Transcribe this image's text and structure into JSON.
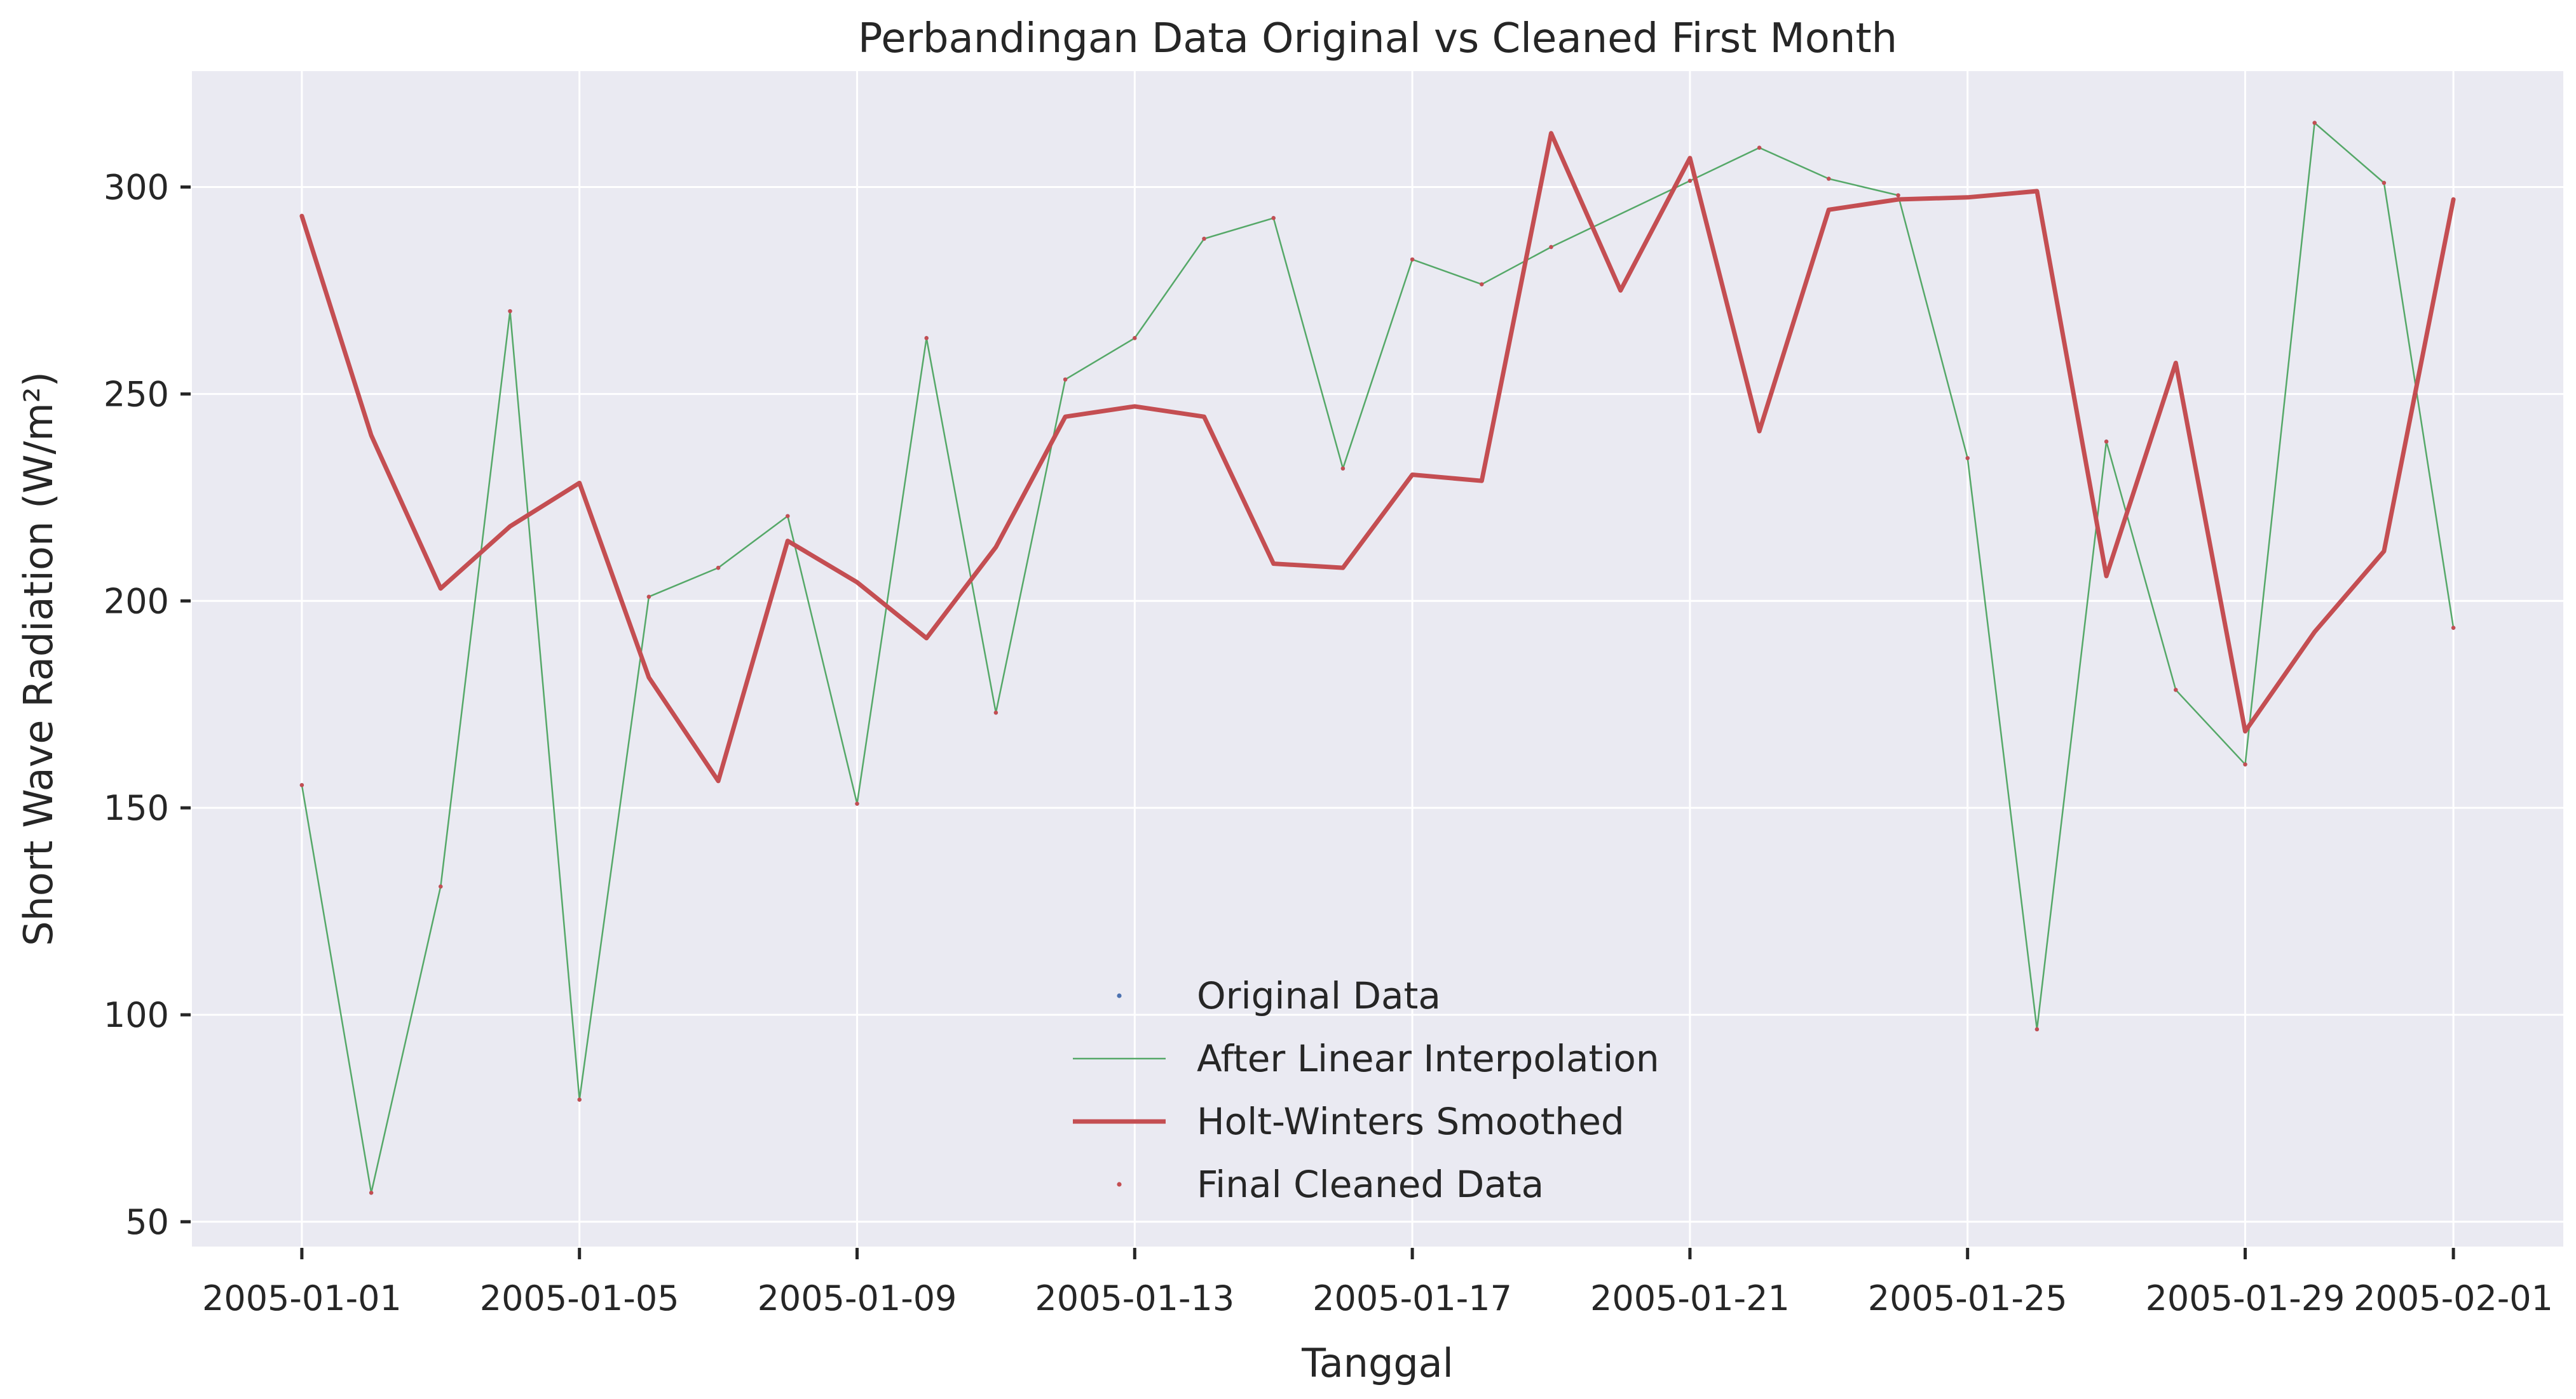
{
  "chart_data": {
    "type": "line",
    "title": "Perbandingan Data Original vs Cleaned First Month",
    "xlabel": "Tanggal",
    "ylabel": "Short Wave Radiation (W/m²)",
    "x_type": "date",
    "xlim": [
      "2004-12-30T10:00",
      "2005-02-02T14:00"
    ],
    "ylim": [
      44,
      328
    ],
    "x_ticks": [
      "2005-01-01",
      "2005-01-05",
      "2005-01-09",
      "2005-01-13",
      "2005-01-17",
      "2005-01-21",
      "2005-01-25",
      "2005-01-29",
      "2005-02-01"
    ],
    "y_ticks": [
      50,
      100,
      150,
      200,
      250,
      300
    ],
    "grid": true,
    "legend_position": "bottom-center",
    "colors": {
      "background": "#eaeaf2",
      "grid": "#ffffff",
      "original": "#4c72b0",
      "interpolated": "#55a868",
      "smoothed": "#c44e52",
      "cleaned": "#c44e52",
      "text": "#262626"
    },
    "series": [
      {
        "name": "Original Data",
        "style": "markers",
        "points": [
          [
            "2005-01-01",
            155.5
          ],
          [
            "2005-01-02",
            57
          ],
          [
            "2005-01-03",
            131
          ],
          [
            "2005-01-04",
            270
          ],
          [
            "2005-01-05",
            79.5
          ],
          [
            "2005-01-06",
            201
          ],
          [
            "2005-01-07",
            208
          ],
          [
            "2005-01-08",
            220.5
          ],
          [
            "2005-01-09",
            151
          ],
          [
            "2005-01-10",
            263.5
          ],
          [
            "2005-01-11",
            173
          ],
          [
            "2005-01-12",
            253.5
          ],
          [
            "2005-01-13",
            263.5
          ],
          [
            "2005-01-14",
            287.5
          ],
          [
            "2005-01-15",
            292.5
          ],
          [
            "2005-01-16",
            232
          ],
          [
            "2005-01-17",
            282.5
          ],
          [
            "2005-01-18",
            276.5
          ],
          [
            "2005-01-19",
            285.5
          ],
          [
            "2005-01-21",
            301.5
          ],
          [
            "2005-01-22",
            309.5
          ],
          [
            "2005-01-23",
            302
          ],
          [
            "2005-01-24",
            298
          ],
          [
            "2005-01-25",
            234.5
          ],
          [
            "2005-01-26",
            96.5
          ],
          [
            "2005-01-27",
            238.5
          ],
          [
            "2005-01-28",
            178.5
          ],
          [
            "2005-01-29",
            160.5
          ],
          [
            "2005-01-30",
            315.5
          ],
          [
            "2005-01-31",
            301
          ],
          [
            "2005-02-01",
            193.5
          ]
        ]
      },
      {
        "name": "After Linear Interpolation",
        "style": "thin-line",
        "points": [
          [
            "2005-01-01",
            155.5
          ],
          [
            "2005-01-02",
            57
          ],
          [
            "2005-01-03",
            131
          ],
          [
            "2005-01-04",
            270
          ],
          [
            "2005-01-05",
            79.5
          ],
          [
            "2005-01-06",
            201
          ],
          [
            "2005-01-07",
            208
          ],
          [
            "2005-01-08",
            220.5
          ],
          [
            "2005-01-09",
            151
          ],
          [
            "2005-01-10",
            263.5
          ],
          [
            "2005-01-11",
            173
          ],
          [
            "2005-01-12",
            253.5
          ],
          [
            "2005-01-13",
            263.5
          ],
          [
            "2005-01-14",
            287.5
          ],
          [
            "2005-01-15",
            292.5
          ],
          [
            "2005-01-16",
            232
          ],
          [
            "2005-01-17",
            282.5
          ],
          [
            "2005-01-18",
            276.5
          ],
          [
            "2005-01-19",
            285.5
          ],
          [
            "2005-01-21",
            301.5
          ],
          [
            "2005-01-22",
            309.5
          ],
          [
            "2005-01-23",
            302
          ],
          [
            "2005-01-24",
            298
          ],
          [
            "2005-01-25",
            234.5
          ],
          [
            "2005-01-26",
            96.5
          ],
          [
            "2005-01-27",
            238.5
          ],
          [
            "2005-01-28",
            178.5
          ],
          [
            "2005-01-29",
            160.5
          ],
          [
            "2005-01-30",
            315.5
          ],
          [
            "2005-01-31",
            301
          ],
          [
            "2005-02-01",
            193.5
          ]
        ]
      },
      {
        "name": "Holt-Winters Smoothed",
        "style": "line",
        "points": [
          [
            "2005-01-01",
            293
          ],
          [
            "2005-01-02",
            240
          ],
          [
            "2005-01-03",
            203
          ],
          [
            "2005-01-04",
            218
          ],
          [
            "2005-01-05",
            228.5
          ],
          [
            "2005-01-06",
            181.5
          ],
          [
            "2005-01-07",
            156.5
          ],
          [
            "2005-01-08",
            214.5
          ],
          [
            "2005-01-09",
            204.5
          ],
          [
            "2005-01-10",
            191
          ],
          [
            "2005-01-11",
            213
          ],
          [
            "2005-01-12",
            244.5
          ],
          [
            "2005-01-13",
            247
          ],
          [
            "2005-01-14",
            244.5
          ],
          [
            "2005-01-15",
            209
          ],
          [
            "2005-01-16",
            208
          ],
          [
            "2005-01-17",
            230.5
          ],
          [
            "2005-01-18",
            229
          ],
          [
            "2005-01-19",
            313
          ],
          [
            "2005-01-20",
            275
          ],
          [
            "2005-01-21",
            307
          ],
          [
            "2005-01-22",
            241
          ],
          [
            "2005-01-23",
            294.5
          ],
          [
            "2005-01-24",
            297
          ],
          [
            "2005-01-25",
            297.5
          ],
          [
            "2005-01-26",
            299
          ],
          [
            "2005-01-27",
            206
          ],
          [
            "2005-01-28",
            257.5
          ],
          [
            "2005-01-29",
            168.5
          ],
          [
            "2005-01-30",
            192.5
          ],
          [
            "2005-01-31",
            212
          ],
          [
            "2005-02-01",
            297
          ]
        ]
      },
      {
        "name": "Final Cleaned Data",
        "style": "markers",
        "points": [
          [
            "2005-01-01",
            155.5
          ],
          [
            "2005-01-02",
            57
          ],
          [
            "2005-01-03",
            131
          ],
          [
            "2005-01-04",
            270
          ],
          [
            "2005-01-05",
            79.5
          ],
          [
            "2005-01-06",
            201
          ],
          [
            "2005-01-07",
            208
          ],
          [
            "2005-01-08",
            220.5
          ],
          [
            "2005-01-09",
            151
          ],
          [
            "2005-01-10",
            263.5
          ],
          [
            "2005-01-11",
            173
          ],
          [
            "2005-01-12",
            253.5
          ],
          [
            "2005-01-13",
            263.5
          ],
          [
            "2005-01-14",
            287.5
          ],
          [
            "2005-01-15",
            292.5
          ],
          [
            "2005-01-16",
            232
          ],
          [
            "2005-01-17",
            282.5
          ],
          [
            "2005-01-18",
            276.5
          ],
          [
            "2005-01-19",
            285.5
          ],
          [
            "2005-01-21",
            301.5
          ],
          [
            "2005-01-22",
            309.5
          ],
          [
            "2005-01-23",
            302
          ],
          [
            "2005-01-24",
            298
          ],
          [
            "2005-01-25",
            234.5
          ],
          [
            "2005-01-26",
            96.5
          ],
          [
            "2005-01-27",
            238.5
          ],
          [
            "2005-01-28",
            178.5
          ],
          [
            "2005-01-29",
            160.5
          ],
          [
            "2005-01-30",
            315.5
          ],
          [
            "2005-01-31",
            301
          ],
          [
            "2005-02-01",
            193.5
          ]
        ]
      }
    ]
  }
}
